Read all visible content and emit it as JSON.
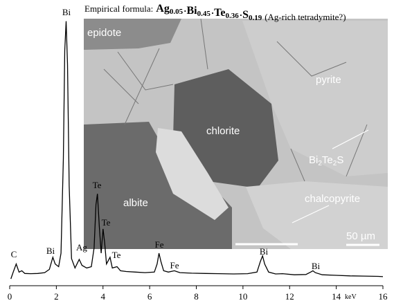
{
  "chart_data": {
    "type": "line",
    "title": {
      "prefix": "Empirical formula:",
      "formula": [
        {
          "symbol": "Ag",
          "index": "0.05"
        },
        {
          "symbol": "Bi",
          "index": "0.45"
        },
        {
          "symbol": "Te",
          "index": "0.36"
        },
        {
          "symbol": "S",
          "index": "0.19"
        }
      ],
      "separator": "·",
      "suffix": "(Ag-rich tetradymite?)"
    },
    "x": [
      0.05,
      0.15,
      0.28,
      0.4,
      0.52,
      0.65,
      0.9,
      1.2,
      1.5,
      1.7,
      1.85,
      1.95,
      2.1,
      2.2,
      2.3,
      2.36,
      2.42,
      2.48,
      2.55,
      2.65,
      2.8,
      2.98,
      3.1,
      3.3,
      3.5,
      3.62,
      3.7,
      3.76,
      3.84,
      3.92,
      4.0,
      4.07,
      4.15,
      4.3,
      4.4,
      4.6,
      4.75,
      5.0,
      5.4,
      5.8,
      6.2,
      6.32,
      6.4,
      6.48,
      6.6,
      6.8,
      7.06,
      7.3,
      7.8,
      8.4,
      9.0,
      9.6,
      10.2,
      10.6,
      10.75,
      10.84,
      10.93,
      11.1,
      11.4,
      11.7,
      12.2,
      12.7,
      12.9,
      13.0,
      13.1,
      13.4,
      14.0,
      14.6,
      15.2,
      15.8,
      16.0
    ],
    "values": [
      0.5,
      3,
      6,
      3,
      3.5,
      2.5,
      2.4,
      2.5,
      2.8,
      4,
      8.5,
      6,
      5,
      10,
      45,
      85,
      96,
      80,
      35,
      8,
      4.5,
      7.7,
      5.5,
      4.5,
      5,
      12,
      28,
      32,
      20,
      10,
      19,
      14,
      6,
      8.5,
      4.5,
      5,
      3.5,
      3.2,
      3,
      2.8,
      3,
      6,
      10,
      7,
      3.5,
      3,
      3.5,
      2.8,
      2.6,
      2.5,
      2.4,
      2.3,
      2.4,
      3,
      7,
      9,
      6,
      3,
      2.3,
      2.4,
      2,
      2.1,
      3,
      3.5,
      2.8,
      2,
      1.8,
      1.6,
      1.5,
      1.4,
      1.3
    ],
    "color": "#000000",
    "xlim": [
      0,
      16
    ],
    "xticks": [
      0,
      2,
      4,
      6,
      8,
      10,
      12,
      14,
      16
    ],
    "xlabel": "keV",
    "ylim": [
      0,
      100
    ],
    "peak_labels": [
      "C",
      "Bi",
      "Bi",
      "Ag",
      "Te",
      "Te",
      "Te",
      "Fe",
      "Fe",
      "Bi",
      "Bi"
    ],
    "inset": {
      "labels": [
        "epidote",
        "pyrite",
        "chlorite",
        "albite",
        "chalcopyrite"
      ],
      "phase_formula": [
        {
          "text": "Bi"
        },
        {
          "text": "2",
          "sub": true
        },
        {
          "text": "Te"
        },
        {
          "text": "2",
          "sub": true
        },
        {
          "text": "S"
        }
      ],
      "scale_bar": "50 µm"
    }
  }
}
